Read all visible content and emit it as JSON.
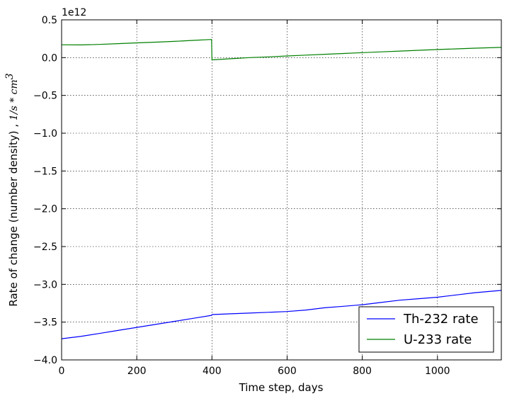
{
  "chart_data": {
    "type": "line",
    "xlabel": "Time step, days",
    "ylabel": "Rate of change (number density) , ",
    "ylabel_unit": "1/s * cm",
    "ylabel_unit_exp": "3",
    "y_offset_label": "1e12",
    "xlim": [
      0,
      1170
    ],
    "ylim": [
      -4.0,
      0.5
    ],
    "x_ticks": [
      0,
      200,
      400,
      600,
      800,
      1000
    ],
    "x_tick_labels": [
      "0",
      "200",
      "400",
      "600",
      "800",
      "1000"
    ],
    "y_ticks": [
      0.5,
      0.0,
      -0.5,
      -1.0,
      -1.5,
      -2.0,
      -2.5,
      -3.0,
      -3.5,
      -4.0
    ],
    "y_tick_labels": [
      "0.5",
      "0.0",
      "−0.5",
      "−1.0",
      "−1.5",
      "−2.0",
      "−2.5",
      "−3.0",
      "−3.5",
      "−4.0"
    ],
    "grid": true,
    "legend_position": "bottom-right",
    "series": [
      {
        "name": "Th-232 rate",
        "color": "#0000ff",
        "x": [
          0,
          50,
          100,
          150,
          200,
          250,
          300,
          350,
          399,
          400,
          450,
          500,
          550,
          600,
          650,
          700,
          750,
          800,
          850,
          900,
          950,
          1000,
          1050,
          1100,
          1170
        ],
        "y": [
          -3.72,
          -3.69,
          -3.65,
          -3.61,
          -3.57,
          -3.53,
          -3.49,
          -3.45,
          -3.41,
          -3.4,
          -3.39,
          -3.38,
          -3.37,
          -3.36,
          -3.34,
          -3.31,
          -3.29,
          -3.27,
          -3.24,
          -3.21,
          -3.19,
          -3.17,
          -3.14,
          -3.11,
          -3.08
        ]
      },
      {
        "name": "U-233 rate",
        "color": "#008000",
        "x": [
          0,
          50,
          100,
          150,
          200,
          250,
          300,
          350,
          399,
          400,
          450,
          500,
          550,
          600,
          650,
          700,
          750,
          800,
          850,
          900,
          950,
          1000,
          1050,
          1100,
          1170
        ],
        "y": [
          0.17,
          0.168,
          0.175,
          0.185,
          0.195,
          0.205,
          0.215,
          0.228,
          0.24,
          -0.03,
          -0.015,
          0.0,
          0.01,
          0.022,
          0.033,
          0.044,
          0.055,
          0.066,
          0.076,
          0.087,
          0.097,
          0.107,
          0.116,
          0.125,
          0.135
        ]
      }
    ]
  }
}
